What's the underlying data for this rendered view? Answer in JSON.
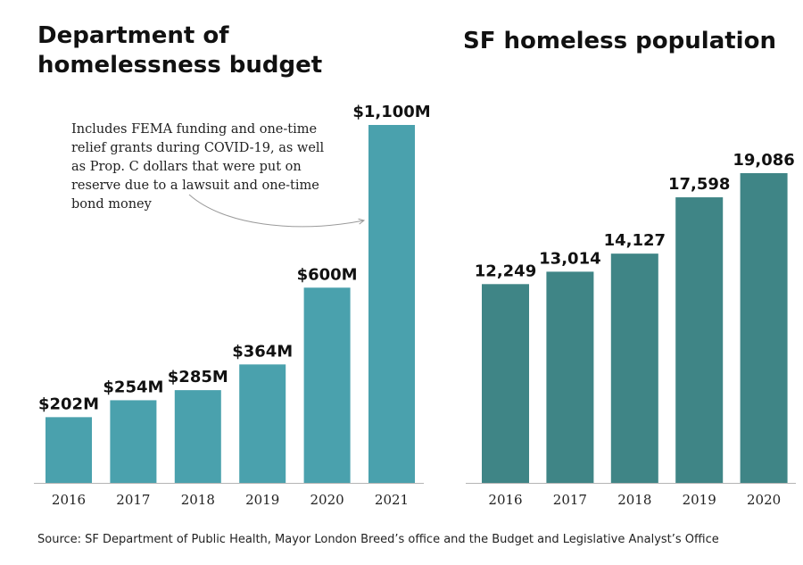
{
  "title_left": "Department of homelessness budget",
  "title_right": "SF homeless population",
  "annotation": "Includes FEMA funding and one-time relief grants during COVID-19, as well as Prop. C dollars that were put on reserve due to a lawsuit and one-time bond money",
  "source": "Source: SF Department of Public Health, Mayor London Breed’s office and the Budget and Legislative Analyst’s Office",
  "colors": {
    "budget_bar": "#4aa1ad",
    "population_bar": "#3f8586",
    "axis": "#b5b5b5"
  },
  "chart_data": [
    {
      "type": "bar",
      "title": "Department of homelessness budget",
      "categories": [
        "2016",
        "2017",
        "2018",
        "2019",
        "2020",
        "2021"
      ],
      "values": [
        202,
        254,
        285,
        364,
        600,
        1100
      ],
      "value_labels": [
        "$202M",
        "$254M",
        "$285M",
        "$364M",
        "$600M",
        "$1,100M"
      ],
      "unit": "millions of dollars",
      "ylim": [
        0,
        1100
      ],
      "grid": false
    },
    {
      "type": "bar",
      "title": "SF homeless population",
      "categories": [
        "2016",
        "2017",
        "2018",
        "2019",
        "2020"
      ],
      "values": [
        12249,
        13014,
        14127,
        17598,
        19086
      ],
      "value_labels": [
        "12,249",
        "13,014",
        "14,127",
        "17,598",
        "19,086"
      ],
      "ylim": [
        0,
        19086
      ],
      "grid": false
    }
  ]
}
